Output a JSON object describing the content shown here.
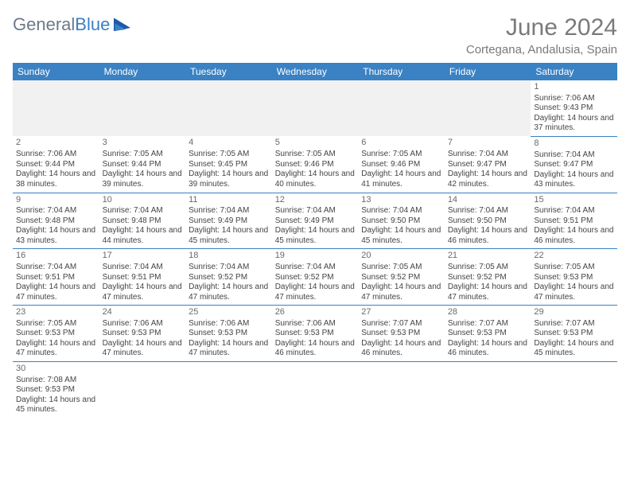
{
  "brand": {
    "name_a": "General",
    "name_b": "Blue"
  },
  "title": "June 2024",
  "location": "Cortegana, Andalusia, Spain",
  "colors": {
    "accent": "#3a82c4",
    "muted": "#7a7a7a",
    "pad_bg": "#f1f1f1"
  },
  "day_headers": [
    "Sunday",
    "Monday",
    "Tuesday",
    "Wednesday",
    "Thursday",
    "Friday",
    "Saturday"
  ],
  "weeks": [
    [
      null,
      null,
      null,
      null,
      null,
      null,
      {
        "n": "1",
        "sr": "7:06 AM",
        "ss": "9:43 PM",
        "dl": "14 hours and 37 minutes."
      }
    ],
    [
      {
        "n": "2",
        "sr": "7:06 AM",
        "ss": "9:44 PM",
        "dl": "14 hours and 38 minutes."
      },
      {
        "n": "3",
        "sr": "7:05 AM",
        "ss": "9:44 PM",
        "dl": "14 hours and 39 minutes."
      },
      {
        "n": "4",
        "sr": "7:05 AM",
        "ss": "9:45 PM",
        "dl": "14 hours and 39 minutes."
      },
      {
        "n": "5",
        "sr": "7:05 AM",
        "ss": "9:46 PM",
        "dl": "14 hours and 40 minutes."
      },
      {
        "n": "6",
        "sr": "7:05 AM",
        "ss": "9:46 PM",
        "dl": "14 hours and 41 minutes."
      },
      {
        "n": "7",
        "sr": "7:04 AM",
        "ss": "9:47 PM",
        "dl": "14 hours and 42 minutes."
      },
      {
        "n": "8",
        "sr": "7:04 AM",
        "ss": "9:47 PM",
        "dl": "14 hours and 43 minutes."
      }
    ],
    [
      {
        "n": "9",
        "sr": "7:04 AM",
        "ss": "9:48 PM",
        "dl": "14 hours and 43 minutes."
      },
      {
        "n": "10",
        "sr": "7:04 AM",
        "ss": "9:48 PM",
        "dl": "14 hours and 44 minutes."
      },
      {
        "n": "11",
        "sr": "7:04 AM",
        "ss": "9:49 PM",
        "dl": "14 hours and 45 minutes."
      },
      {
        "n": "12",
        "sr": "7:04 AM",
        "ss": "9:49 PM",
        "dl": "14 hours and 45 minutes."
      },
      {
        "n": "13",
        "sr": "7:04 AM",
        "ss": "9:50 PM",
        "dl": "14 hours and 45 minutes."
      },
      {
        "n": "14",
        "sr": "7:04 AM",
        "ss": "9:50 PM",
        "dl": "14 hours and 46 minutes."
      },
      {
        "n": "15",
        "sr": "7:04 AM",
        "ss": "9:51 PM",
        "dl": "14 hours and 46 minutes."
      }
    ],
    [
      {
        "n": "16",
        "sr": "7:04 AM",
        "ss": "9:51 PM",
        "dl": "14 hours and 47 minutes."
      },
      {
        "n": "17",
        "sr": "7:04 AM",
        "ss": "9:51 PM",
        "dl": "14 hours and 47 minutes."
      },
      {
        "n": "18",
        "sr": "7:04 AM",
        "ss": "9:52 PM",
        "dl": "14 hours and 47 minutes."
      },
      {
        "n": "19",
        "sr": "7:04 AM",
        "ss": "9:52 PM",
        "dl": "14 hours and 47 minutes."
      },
      {
        "n": "20",
        "sr": "7:05 AM",
        "ss": "9:52 PM",
        "dl": "14 hours and 47 minutes."
      },
      {
        "n": "21",
        "sr": "7:05 AM",
        "ss": "9:52 PM",
        "dl": "14 hours and 47 minutes."
      },
      {
        "n": "22",
        "sr": "7:05 AM",
        "ss": "9:53 PM",
        "dl": "14 hours and 47 minutes."
      }
    ],
    [
      {
        "n": "23",
        "sr": "7:05 AM",
        "ss": "9:53 PM",
        "dl": "14 hours and 47 minutes."
      },
      {
        "n": "24",
        "sr": "7:06 AM",
        "ss": "9:53 PM",
        "dl": "14 hours and 47 minutes."
      },
      {
        "n": "25",
        "sr": "7:06 AM",
        "ss": "9:53 PM",
        "dl": "14 hours and 47 minutes."
      },
      {
        "n": "26",
        "sr": "7:06 AM",
        "ss": "9:53 PM",
        "dl": "14 hours and 46 minutes."
      },
      {
        "n": "27",
        "sr": "7:07 AM",
        "ss": "9:53 PM",
        "dl": "14 hours and 46 minutes."
      },
      {
        "n": "28",
        "sr": "7:07 AM",
        "ss": "9:53 PM",
        "dl": "14 hours and 46 minutes."
      },
      {
        "n": "29",
        "sr": "7:07 AM",
        "ss": "9:53 PM",
        "dl": "14 hours and 45 minutes."
      }
    ],
    [
      {
        "n": "30",
        "sr": "7:08 AM",
        "ss": "9:53 PM",
        "dl": "14 hours and 45 minutes."
      },
      null,
      null,
      null,
      null,
      null,
      null
    ]
  ],
  "labels": {
    "sunrise": "Sunrise:",
    "sunset": "Sunset:",
    "daylight": "Daylight:"
  }
}
